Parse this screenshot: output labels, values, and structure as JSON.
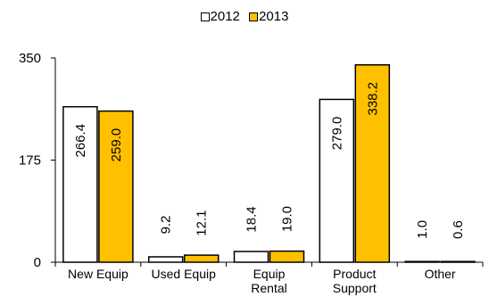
{
  "chart_data": {
    "type": "bar",
    "categories": [
      [
        "New Equip"
      ],
      [
        "Used Equip"
      ],
      [
        "Equip",
        "Rental"
      ],
      [
        "Product",
        "Support"
      ],
      [
        "Other"
      ]
    ],
    "series": [
      {
        "name": "2012",
        "values": [
          266.4,
          9.2,
          18.4,
          279.0,
          1.0
        ],
        "labels": [
          "266.4",
          "9.2",
          "18.4",
          "279.0",
          "1.0"
        ],
        "color": "#ffffff"
      },
      {
        "name": "2013",
        "values": [
          259.0,
          12.1,
          19.0,
          338.2,
          0.6
        ],
        "labels": [
          "259.0",
          "12.1",
          "19.0",
          "338.2",
          "0.6"
        ],
        "color": "#ffc000"
      }
    ],
    "yticks": [
      "0",
      "175",
      "350"
    ],
    "ylim": [
      0,
      350
    ],
    "grid": false,
    "legend": "top-center",
    "title": "",
    "xlabel": "",
    "ylabel": ""
  }
}
